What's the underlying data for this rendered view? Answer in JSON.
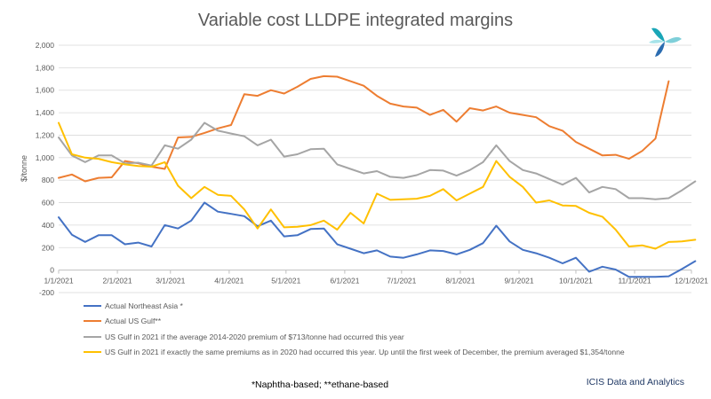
{
  "chart_data": {
    "type": "line",
    "title": "Variable cost LLDPE integrated margins",
    "ylabel": "$/tonne",
    "xlabel": "",
    "ylim": [
      -200,
      2000
    ],
    "yticks": [
      -200,
      0,
      200,
      400,
      600,
      800,
      1000,
      1200,
      1400,
      1600,
      1800,
      2000
    ],
    "ytick_labels": [
      "-200",
      "0",
      "200",
      "400",
      "600",
      "800",
      "1,000",
      "1,200",
      "1,400",
      "1,600",
      "1,800",
      "2,000"
    ],
    "xlim": [
      "2021-01-01",
      "2021-12-01"
    ],
    "xtick_labels": [
      "1/1/2021",
      "2/1/2021",
      "3/1/2021",
      "4/1/2021",
      "5/1/2021",
      "6/1/2021",
      "7/1/2021",
      "8/1/2021",
      "9/1/2021",
      "10/1/2021",
      "11/1/2021",
      "12/1/2021"
    ],
    "grid": "horizontal",
    "legend_position": "bottom",
    "x": [
      "2021-01-01",
      "2021-01-08",
      "2021-01-15",
      "2021-01-22",
      "2021-01-29",
      "2021-02-05",
      "2021-02-12",
      "2021-02-19",
      "2021-02-26",
      "2021-03-05",
      "2021-03-12",
      "2021-03-19",
      "2021-03-26",
      "2021-04-02",
      "2021-04-09",
      "2021-04-16",
      "2021-04-23",
      "2021-04-30",
      "2021-05-07",
      "2021-05-14",
      "2021-05-21",
      "2021-05-28",
      "2021-06-04",
      "2021-06-11",
      "2021-06-18",
      "2021-06-25",
      "2021-07-02",
      "2021-07-09",
      "2021-07-16",
      "2021-07-23",
      "2021-07-30",
      "2021-08-06",
      "2021-08-13",
      "2021-08-20",
      "2021-08-27",
      "2021-09-03",
      "2021-09-10",
      "2021-09-17",
      "2021-09-24",
      "2021-10-01",
      "2021-10-08",
      "2021-10-15",
      "2021-10-22",
      "2021-10-29",
      "2021-11-05",
      "2021-11-12",
      "2021-11-19",
      "2021-11-26",
      "2021-12-03"
    ],
    "series": [
      {
        "name": "Actual Northeast Asia *",
        "color": "#4472c4",
        "values": [
          470,
          315,
          250,
          310,
          310,
          230,
          245,
          210,
          400,
          370,
          440,
          600,
          520,
          500,
          480,
          390,
          440,
          300,
          310,
          365,
          370,
          230,
          190,
          150,
          175,
          120,
          110,
          140,
          175,
          170,
          140,
          180,
          240,
          395,
          255,
          180,
          150,
          110,
          60,
          110,
          -15,
          30,
          5,
          -60,
          -60,
          -60,
          -55,
          10,
          80
        ]
      },
      {
        "name": "Actual US Gulf**",
        "color": "#ed7d31",
        "values": [
          820,
          850,
          790,
          820,
          825,
          970,
          950,
          920,
          900,
          1180,
          1185,
          1220,
          1260,
          1290,
          1565,
          1550,
          1600,
          1570,
          1630,
          1700,
          1725,
          1720,
          1680,
          1640,
          1550,
          1480,
          1455,
          1445,
          1380,
          1425,
          1320,
          1440,
          1420,
          1455,
          1400,
          1380,
          1360,
          1280,
          1240,
          1140,
          1080,
          1020,
          1025,
          990,
          1060,
          1170,
          1680,
          null,
          null
        ]
      },
      {
        "name": "US Gulf in 2021 if the average 2014-2020 premium of $713/tonne had occurred this year",
        "color": "#a5a5a5",
        "values": [
          1180,
          1020,
          960,
          1020,
          1020,
          950,
          955,
          930,
          1110,
          1080,
          1160,
          1310,
          1240,
          1215,
          1190,
          1110,
          1160,
          1010,
          1030,
          1075,
          1080,
          940,
          900,
          860,
          880,
          830,
          820,
          845,
          890,
          885,
          840,
          890,
          960,
          1110,
          970,
          890,
          860,
          810,
          760,
          820,
          690,
          740,
          720,
          640,
          640,
          630,
          640,
          710,
          790
        ]
      },
      {
        "name": "US Gulf in 2021 if exactly the same premiums as in 2020 had occurred this year. Up until the first week of December, the premium averaged $1,354/tonne",
        "color": "#ffc000",
        "values": [
          1310,
          1030,
          1000,
          990,
          960,
          940,
          925,
          920,
          960,
          750,
          640,
          740,
          670,
          660,
          540,
          370,
          540,
          380,
          385,
          400,
          440,
          360,
          510,
          415,
          680,
          625,
          630,
          635,
          660,
          720,
          620,
          680,
          740,
          970,
          830,
          740,
          600,
          620,
          575,
          570,
          510,
          475,
          360,
          210,
          220,
          190,
          250,
          255,
          270
        ]
      }
    ]
  },
  "footnote": "*Naphtha-based;  **ethane-based",
  "source": "ICIS Data and Analytics",
  "logo": {
    "icon": "icis-logo",
    "colors": [
      "#1aa6b7",
      "#7fcfd9",
      "#2b6cb0",
      "#a6e3e9"
    ]
  }
}
